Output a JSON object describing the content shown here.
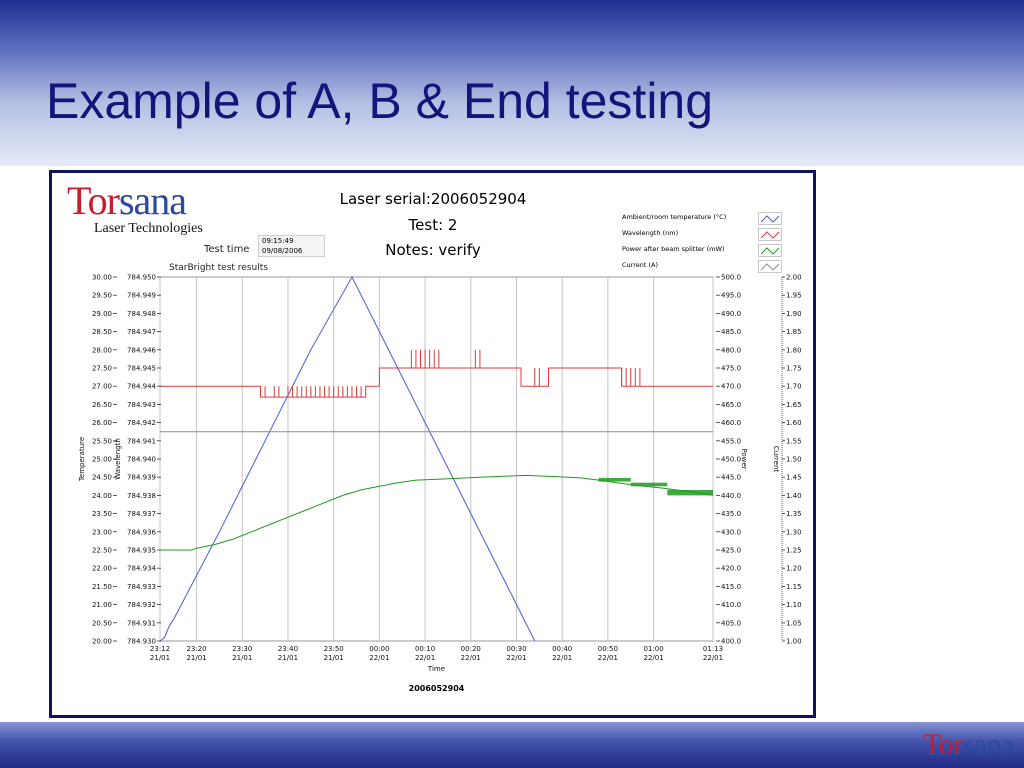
{
  "slide": {
    "title": "Example of A, B & End testing",
    "footer_logo": {
      "tor": "Tor",
      "sana": "sana"
    }
  },
  "panel": {
    "logo": {
      "tor": "Tor",
      "sana": "sana",
      "subtitle": "Laser Technologies"
    },
    "header": {
      "serial": "Laser serial:2006052904",
      "test": "Test: 2",
      "notes": "Notes: verify"
    },
    "test_time": {
      "label": "Test time",
      "time": "09:15:49",
      "date": "09/08/2006"
    },
    "chart_title": "StarBright test results",
    "legend": [
      {
        "label": "Ambient/room temperature (°C)",
        "color": "#4b5bd6"
      },
      {
        "label": "Wavelength (nm)",
        "color": "#e03a3a"
      },
      {
        "label": "Power after beam splitter (mW)",
        "color": "#1e9a1e"
      },
      {
        "label": "Current (A)",
        "color": "#8c8c8c"
      }
    ]
  },
  "chart_data": {
    "type": "line",
    "title": "StarBright test results",
    "xlabel": "Time",
    "caption": "2006052904",
    "x_ticks": [
      {
        "t": 0,
        "label": [
          "23:12",
          "21/01"
        ]
      },
      {
        "t": 8,
        "label": [
          "23:20",
          "21/01"
        ]
      },
      {
        "t": 18,
        "label": [
          "23:30",
          "21/01"
        ]
      },
      {
        "t": 28,
        "label": [
          "23:40",
          "21/01"
        ]
      },
      {
        "t": 38,
        "label": [
          "23:50",
          "21/01"
        ]
      },
      {
        "t": 48,
        "label": [
          "00:00",
          "22/01"
        ]
      },
      {
        "t": 58,
        "label": [
          "00:10",
          "22/01"
        ]
      },
      {
        "t": 68,
        "label": [
          "00:20",
          "22/01"
        ]
      },
      {
        "t": 78,
        "label": [
          "00:30",
          "22/01"
        ]
      },
      {
        "t": 88,
        "label": [
          "00:40",
          "22/01"
        ]
      },
      {
        "t": 98,
        "label": [
          "00:50",
          "22/01"
        ]
      },
      {
        "t": 108,
        "label": [
          "01:00",
          "22/01"
        ]
      },
      {
        "t": 121,
        "label": [
          "01:13",
          "22/01"
        ]
      }
    ],
    "x_range_minutes": [
      0,
      121
    ],
    "axes": {
      "temperature": {
        "label": "Temperature",
        "range": [
          20,
          30
        ],
        "ticks": [
          "30.00",
          "29.50",
          "29.00",
          "28.50",
          "28.00",
          "27.50",
          "27.00",
          "26.50",
          "26.00",
          "25.50",
          "25.00",
          "24.50",
          "24.00",
          "23.50",
          "23.00",
          "22.50",
          "22.00",
          "21.50",
          "21.00",
          "20.50",
          "20.00"
        ]
      },
      "wavelength": {
        "label": "Wavelength",
        "range": [
          784.93,
          784.95
        ],
        "ticks": [
          "784.950",
          "784.949",
          "784.948",
          "784.947",
          "784.946",
          "784.945",
          "784.944",
          "784.943",
          "784.942",
          "784.941",
          "784.940",
          "784.939",
          "784.938",
          "784.937",
          "784.936",
          "784.935",
          "784.934",
          "784.933",
          "784.932",
          "784.931",
          "784.930"
        ]
      },
      "power": {
        "label": "Power",
        "range": [
          400,
          500
        ],
        "ticks": [
          "500.0",
          "495.0",
          "490.0",
          "485.0",
          "480.0",
          "475.0",
          "470.0",
          "465.0",
          "460.0",
          "455.0",
          "450.0",
          "445.0",
          "440.0",
          "435.0",
          "430.0",
          "425.0",
          "420.0",
          "415.0",
          "410.0",
          "405.0",
          "400.0"
        ]
      },
      "current": {
        "label": "Current",
        "range": [
          1.0,
          2.0
        ],
        "ticks": [
          "2.00",
          "1.95",
          "1.90",
          "1.85",
          "1.80",
          "1.75",
          "1.70",
          "1.65",
          "1.60",
          "1.55",
          "1.50",
          "1.45",
          "1.40",
          "1.35",
          "1.30",
          "1.25",
          "1.20",
          "1.15",
          "1.10",
          "1.05",
          "1.00"
        ]
      }
    },
    "series": [
      {
        "name": "Ambient/room temperature (°C)",
        "axis": "temperature",
        "color": "#4b5bd6",
        "points": [
          [
            0,
            20.0
          ],
          [
            1,
            20.1
          ],
          [
            2,
            20.4
          ],
          [
            3,
            20.6
          ],
          [
            13,
            23.0
          ],
          [
            23,
            25.5
          ],
          [
            33,
            28.0
          ],
          [
            42,
            30.0
          ],
          [
            52,
            27.5
          ],
          [
            62,
            25.0
          ],
          [
            72,
            22.5
          ],
          [
            82,
            20.0
          ]
        ]
      },
      {
        "name": "Wavelength (nm)",
        "axis": "wavelength",
        "color": "#e03a3a",
        "points": [
          [
            0,
            784.944
          ],
          [
            22,
            784.944
          ],
          [
            22,
            784.9434
          ],
          [
            45,
            784.9434
          ],
          [
            45,
            784.944
          ],
          [
            48,
            784.944
          ],
          [
            48,
            784.945
          ],
          [
            79,
            784.945
          ],
          [
            79,
            784.944
          ],
          [
            85,
            784.944
          ],
          [
            85,
            784.945
          ],
          [
            101,
            784.945
          ],
          [
            101,
            784.944
          ],
          [
            121,
            784.944
          ]
        ],
        "spikes": [
          [
            22,
            784.9434,
            784.944
          ],
          [
            23,
            784.9434,
            784.944
          ],
          [
            25,
            784.9434,
            784.944
          ],
          [
            26,
            784.9434,
            784.944
          ],
          [
            28,
            784.9434,
            784.944
          ],
          [
            29,
            784.9434,
            784.944
          ],
          [
            30,
            784.9434,
            784.944
          ],
          [
            31,
            784.9434,
            784.944
          ],
          [
            32,
            784.9434,
            784.944
          ],
          [
            33,
            784.9434,
            784.944
          ],
          [
            34,
            784.9434,
            784.944
          ],
          [
            35,
            784.9434,
            784.944
          ],
          [
            36,
            784.9434,
            784.944
          ],
          [
            37,
            784.9434,
            784.944
          ],
          [
            38,
            784.9434,
            784.944
          ],
          [
            39,
            784.9434,
            784.944
          ],
          [
            40,
            784.9434,
            784.944
          ],
          [
            41,
            784.9434,
            784.944
          ],
          [
            42,
            784.9434,
            784.944
          ],
          [
            43,
            784.9434,
            784.944
          ],
          [
            44,
            784.9434,
            784.944
          ],
          [
            55,
            784.945,
            784.946
          ],
          [
            56,
            784.945,
            784.946
          ],
          [
            57,
            784.945,
            784.946
          ],
          [
            58,
            784.945,
            784.946
          ],
          [
            59,
            784.945,
            784.946
          ],
          [
            60,
            784.945,
            784.946
          ],
          [
            61,
            784.945,
            784.946
          ],
          [
            69,
            784.945,
            784.946
          ],
          [
            70,
            784.945,
            784.946
          ],
          [
            82,
            784.944,
            784.945
          ],
          [
            83,
            784.944,
            784.945
          ],
          [
            101,
            784.944,
            784.945
          ],
          [
            102,
            784.944,
            784.945
          ],
          [
            103,
            784.944,
            784.945
          ],
          [
            104,
            784.944,
            784.945
          ],
          [
            105,
            784.944,
            784.945
          ]
        ]
      },
      {
        "name": "Current (A)",
        "axis": "current",
        "color": "#8c8c8c",
        "points": [
          [
            0,
            1.575
          ],
          [
            121,
            1.575
          ]
        ]
      },
      {
        "name": "Power after beam splitter (mW)",
        "axis": "power",
        "color": "#1e9a1e",
        "points": [
          [
            0,
            425.0
          ],
          [
            7,
            425.0
          ],
          [
            8,
            425.5
          ],
          [
            12,
            426.5
          ],
          [
            16,
            428.0
          ],
          [
            20,
            430.0
          ],
          [
            24,
            432.0
          ],
          [
            28,
            434.0
          ],
          [
            32,
            436.0
          ],
          [
            36,
            438.0
          ],
          [
            40,
            440.0
          ],
          [
            44,
            441.5
          ],
          [
            48,
            442.5
          ],
          [
            52,
            443.5
          ],
          [
            56,
            444.2
          ],
          [
            62,
            444.5
          ],
          [
            70,
            445.0
          ],
          [
            80,
            445.5
          ],
          [
            86,
            445.2
          ],
          [
            92,
            444.8
          ],
          [
            96,
            444.2
          ],
          [
            100,
            443.5
          ],
          [
            104,
            442.8
          ],
          [
            110,
            442.0
          ],
          [
            116,
            441.0
          ],
          [
            121,
            440.0
          ]
        ],
        "bands": [
          [
            96,
            103,
            443.8,
            444.8
          ],
          [
            103,
            111,
            442.5,
            443.5
          ],
          [
            111,
            121,
            440.0,
            441.5
          ]
        ]
      }
    ]
  }
}
